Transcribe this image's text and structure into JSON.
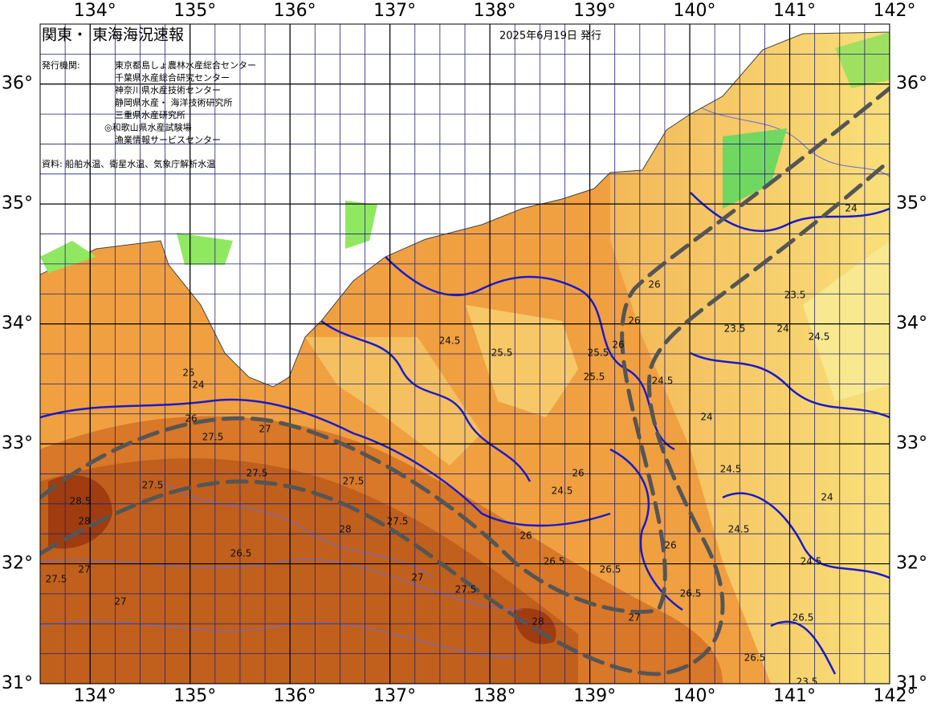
{
  "header": {
    "title": "関東・ 東海海況速報",
    "date": "2025年6月19日 発行"
  },
  "agencies": {
    "label": "発行機関:",
    "items": [
      "東京都島しょ農林水産総合センター",
      "千葉県水産総合研究センター",
      "神奈川県水産技術センター",
      "静岡県水産・ 海洋技術研究所",
      "三重県水産研究所",
      "◎和歌山県水産試験場",
      "漁業情報サービスセンター"
    ]
  },
  "source": "資料: 船舶水温、衛星水温、気象庁解析水温",
  "map": {
    "xlim": [
      133.5,
      142
    ],
    "ylim": [
      31,
      36.5
    ],
    "xticks": [
      {
        "value": 134,
        "label": "134°"
      },
      {
        "value": 135,
        "label": "135°"
      },
      {
        "value": 136,
        "label": "136°"
      },
      {
        "value": 137,
        "label": "137°"
      },
      {
        "value": 138,
        "label": "138°"
      },
      {
        "value": 139,
        "label": "139°"
      },
      {
        "value": 140,
        "label": "140°"
      },
      {
        "value": 141,
        "label": "141°"
      },
      {
        "value": 142,
        "label": "142°"
      }
    ],
    "yticks": [
      {
        "value": 31,
        "label": "31°"
      },
      {
        "value": 32,
        "label": "32°"
      },
      {
        "value": 33,
        "label": "33°"
      },
      {
        "value": 34,
        "label": "34°"
      },
      {
        "value": 35,
        "label": "35°"
      },
      {
        "value": 36,
        "label": "36°"
      }
    ],
    "contour_labels": [
      "27.5",
      "28.5",
      "28",
      "27",
      "27.5",
      "27.5",
      "27",
      "26.5",
      "26",
      "25",
      "24",
      "27",
      "27.5",
      "28",
      "27.5",
      "27.5",
      "27",
      "26",
      "26.5",
      "27.5",
      "28",
      "25.5",
      "26",
      "26",
      "24.5",
      "24.5",
      "25.5",
      "25.5",
      "26",
      "24.5",
      "24",
      "23.5",
      "23.5",
      "24",
      "24.5",
      "24.5",
      "24",
      "26.5",
      "26",
      "26.5",
      "27",
      "26.5",
      "26",
      "24.5",
      "23.5",
      "24",
      "24.5",
      "26.5"
    ]
  }
}
